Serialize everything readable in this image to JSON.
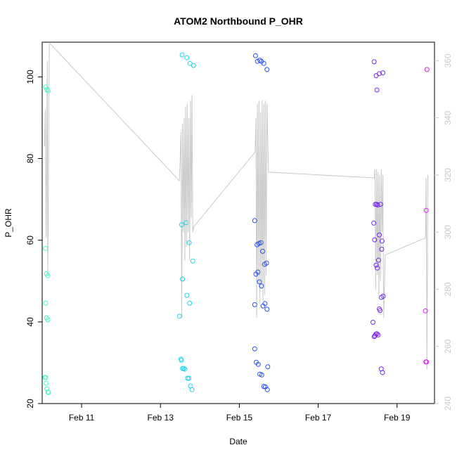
{
  "chart_data": {
    "type": "scatter",
    "title": "ATOM2 Northbound P_OHR",
    "xlabel": "Date",
    "ylabel": "P_OHR",
    "x_unit": "days",
    "x_ticks": [
      {
        "value": 11,
        "label": "Feb 11"
      },
      {
        "value": 13,
        "label": "Feb 13"
      },
      {
        "value": 15,
        "label": "Feb 15"
      },
      {
        "value": 17,
        "label": "Feb 17"
      },
      {
        "value": 19,
        "label": "Feb 19"
      }
    ],
    "xlim": [
      10.0,
      19.95
    ],
    "ylim": [
      20.0,
      108.5
    ],
    "y_ticks": [
      20,
      40,
      60,
      80,
      100
    ],
    "y2_ticks": [
      240,
      260,
      280,
      300,
      320,
      340,
      360
    ],
    "y2lim": [
      240.0,
      366.5
    ],
    "grid": false,
    "points": [
      {
        "x": 10.09,
        "y": 97.5,
        "color": "#3cffb4"
      },
      {
        "x": 10.12,
        "y": 96.9,
        "color": "#3cffb4"
      },
      {
        "x": 10.15,
        "y": 96.6,
        "color": "#3cffb4"
      },
      {
        "x": 10.08,
        "y": 58.0,
        "color": "#3cffb4"
      },
      {
        "x": 10.11,
        "y": 51.8,
        "color": "#3cffb4"
      },
      {
        "x": 10.14,
        "y": 51.3,
        "color": "#3cffb4"
      },
      {
        "x": 10.09,
        "y": 44.6,
        "color": "#3cffb4"
      },
      {
        "x": 10.11,
        "y": 41.0,
        "color": "#3cffb4"
      },
      {
        "x": 10.14,
        "y": 40.5,
        "color": "#3cffb4"
      },
      {
        "x": 10.07,
        "y": 26.4,
        "color": "#3cffb4"
      },
      {
        "x": 10.09,
        "y": 26.4,
        "color": "#3cffb4"
      },
      {
        "x": 10.1,
        "y": 25.0,
        "color": "#3cffb4"
      },
      {
        "x": 10.12,
        "y": 23.6,
        "color": "#3cffb4"
      },
      {
        "x": 10.15,
        "y": 22.8,
        "color": "#3cffb4"
      },
      {
        "x": 10.16,
        "y": 22.7,
        "color": "#3cffb4"
      },
      {
        "x": 13.55,
        "y": 105.4,
        "color": "#1ed2f0"
      },
      {
        "x": 13.67,
        "y": 104.7,
        "color": "#1ed2f0"
      },
      {
        "x": 13.75,
        "y": 103.3,
        "color": "#1ed2f0"
      },
      {
        "x": 13.84,
        "y": 102.8,
        "color": "#1ed2f0"
      },
      {
        "x": 13.54,
        "y": 63.8,
        "color": "#1ed2f0"
      },
      {
        "x": 13.65,
        "y": 64.3,
        "color": "#1ed2f0"
      },
      {
        "x": 13.73,
        "y": 59.4,
        "color": "#1ed2f0"
      },
      {
        "x": 13.82,
        "y": 54.9,
        "color": "#1ed2f0"
      },
      {
        "x": 13.56,
        "y": 50.5,
        "color": "#1ed2f0"
      },
      {
        "x": 13.67,
        "y": 46.5,
        "color": "#1ed2f0"
      },
      {
        "x": 13.74,
        "y": 44.6,
        "color": "#1ed2f0"
      },
      {
        "x": 13.48,
        "y": 41.4,
        "color": "#1ed2f0"
      },
      {
        "x": 13.52,
        "y": 30.9,
        "color": "#1ed2f0"
      },
      {
        "x": 13.53,
        "y": 30.6,
        "color": "#1ed2f0"
      },
      {
        "x": 13.56,
        "y": 28.6,
        "color": "#1ed2f0"
      },
      {
        "x": 13.59,
        "y": 28.6,
        "color": "#1ed2f0"
      },
      {
        "x": 13.62,
        "y": 28.4,
        "color": "#1ed2f0"
      },
      {
        "x": 13.69,
        "y": 26.2,
        "color": "#1ed2f0"
      },
      {
        "x": 13.72,
        "y": 26.2,
        "color": "#1ed2f0"
      },
      {
        "x": 13.76,
        "y": 24.3,
        "color": "#1ed2f0"
      },
      {
        "x": 13.8,
        "y": 23.4,
        "color": "#1ed2f0"
      },
      {
        "x": 15.41,
        "y": 105.2,
        "color": "#2850f0"
      },
      {
        "x": 15.46,
        "y": 103.8,
        "color": "#2850f0"
      },
      {
        "x": 15.52,
        "y": 104.1,
        "color": "#2850f0"
      },
      {
        "x": 15.56,
        "y": 103.8,
        "color": "#2850f0"
      },
      {
        "x": 15.62,
        "y": 103.3,
        "color": "#2850f0"
      },
      {
        "x": 15.7,
        "y": 101.8,
        "color": "#2850f0"
      },
      {
        "x": 15.39,
        "y": 64.8,
        "color": "#2850f0"
      },
      {
        "x": 15.45,
        "y": 58.9,
        "color": "#2850f0"
      },
      {
        "x": 15.5,
        "y": 59.2,
        "color": "#2850f0"
      },
      {
        "x": 15.55,
        "y": 59.4,
        "color": "#2850f0"
      },
      {
        "x": 15.59,
        "y": 57.3,
        "color": "#2850f0"
      },
      {
        "x": 15.64,
        "y": 54.1,
        "color": "#2850f0"
      },
      {
        "x": 15.69,
        "y": 54.4,
        "color": "#2850f0"
      },
      {
        "x": 15.42,
        "y": 51.7,
        "color": "#2850f0"
      },
      {
        "x": 15.47,
        "y": 52.2,
        "color": "#2850f0"
      },
      {
        "x": 15.51,
        "y": 49.8,
        "color": "#2850f0"
      },
      {
        "x": 15.56,
        "y": 48.8,
        "color": "#2850f0"
      },
      {
        "x": 15.39,
        "y": 44.2,
        "color": "#2850f0"
      },
      {
        "x": 15.6,
        "y": 43.9,
        "color": "#2850f0"
      },
      {
        "x": 15.65,
        "y": 44.5,
        "color": "#2850f0"
      },
      {
        "x": 15.7,
        "y": 43.1,
        "color": "#2850f0"
      },
      {
        "x": 15.39,
        "y": 33.4,
        "color": "#2850f0"
      },
      {
        "x": 15.43,
        "y": 30.1,
        "color": "#2850f0"
      },
      {
        "x": 15.48,
        "y": 29.6,
        "color": "#2850f0"
      },
      {
        "x": 15.52,
        "y": 27.2,
        "color": "#2850f0"
      },
      {
        "x": 15.57,
        "y": 27.0,
        "color": "#2850f0"
      },
      {
        "x": 15.62,
        "y": 24.2,
        "color": "#2850f0"
      },
      {
        "x": 15.66,
        "y": 24.1,
        "color": "#2850f0"
      },
      {
        "x": 15.71,
        "y": 23.4,
        "color": "#2850f0"
      },
      {
        "x": 15.72,
        "y": 29.0,
        "color": "#2850f0"
      },
      {
        "x": 18.42,
        "y": 103.7,
        "color": "#7828f0"
      },
      {
        "x": 18.47,
        "y": 100.3,
        "color": "#7828f0"
      },
      {
        "x": 18.55,
        "y": 100.8,
        "color": "#7828f0"
      },
      {
        "x": 18.64,
        "y": 101.0,
        "color": "#7828f0"
      },
      {
        "x": 18.49,
        "y": 96.8,
        "color": "#7828f0"
      },
      {
        "x": 18.41,
        "y": 64.2,
        "color": "#7828f0"
      },
      {
        "x": 18.45,
        "y": 68.8,
        "color": "#7828f0"
      },
      {
        "x": 18.48,
        "y": 68.8,
        "color": "#7828f0"
      },
      {
        "x": 18.51,
        "y": 68.6,
        "color": "#7828f0"
      },
      {
        "x": 18.58,
        "y": 68.8,
        "color": "#7828f0"
      },
      {
        "x": 18.43,
        "y": 60.1,
        "color": "#7828f0"
      },
      {
        "x": 18.55,
        "y": 61.3,
        "color": "#7828f0"
      },
      {
        "x": 18.62,
        "y": 59.8,
        "color": "#7828f0"
      },
      {
        "x": 18.61,
        "y": 57.8,
        "color": "#7828f0"
      },
      {
        "x": 18.53,
        "y": 55.1,
        "color": "#7828f0"
      },
      {
        "x": 18.47,
        "y": 53.9,
        "color": "#7828f0"
      },
      {
        "x": 18.5,
        "y": 53.2,
        "color": "#7828f0"
      },
      {
        "x": 18.6,
        "y": 46.0,
        "color": "#7828f0"
      },
      {
        "x": 18.65,
        "y": 46.3,
        "color": "#7828f0"
      },
      {
        "x": 18.39,
        "y": 39.9,
        "color": "#7828f0"
      },
      {
        "x": 18.55,
        "y": 43.2,
        "color": "#7828f0"
      },
      {
        "x": 18.57,
        "y": 42.8,
        "color": "#7828f0"
      },
      {
        "x": 18.42,
        "y": 36.4,
        "color": "#7828f0"
      },
      {
        "x": 18.44,
        "y": 36.6,
        "color": "#7828f0"
      },
      {
        "x": 18.46,
        "y": 37.0,
        "color": "#7828f0"
      },
      {
        "x": 18.49,
        "y": 37.1,
        "color": "#7828f0"
      },
      {
        "x": 18.52,
        "y": 36.8,
        "color": "#7828f0"
      },
      {
        "x": 18.6,
        "y": 28.5,
        "color": "#7828f0"
      },
      {
        "x": 18.63,
        "y": 27.6,
        "color": "#7828f0"
      },
      {
        "x": 19.76,
        "y": 101.8,
        "color": "#dc1ef0"
      },
      {
        "x": 19.74,
        "y": 67.3,
        "color": "#dc1ef0"
      },
      {
        "x": 19.72,
        "y": 42.7,
        "color": "#dc1ef0"
      },
      {
        "x": 19.73,
        "y": 30.2,
        "color": "#dc1ef0"
      },
      {
        "x": 19.75,
        "y": 30.2,
        "color": "#dc1ef0"
      }
    ],
    "line_series": {
      "axis": "right",
      "color": "#c8c8c8",
      "x": [
        10.06,
        10.08,
        10.1,
        10.12,
        10.13,
        10.14,
        10.16,
        10.18,
        10.2,
        13.48,
        13.52,
        13.54,
        13.56,
        13.58,
        13.6,
        13.62,
        13.64,
        13.66,
        13.68,
        13.7,
        13.72,
        13.74,
        13.76,
        13.78,
        13.8,
        13.82,
        13.85,
        15.4,
        15.42,
        15.44,
        15.46,
        15.48,
        15.5,
        15.52,
        15.54,
        15.56,
        15.58,
        15.6,
        15.62,
        15.64,
        15.66,
        15.68,
        15.7,
        15.74,
        18.42,
        18.44,
        18.46,
        18.48,
        18.5,
        18.52,
        18.54,
        18.56,
        18.58,
        18.6,
        18.62,
        18.64,
        18.66,
        18.7,
        19.72,
        19.74,
        19.76,
        19.78
      ],
      "y": [
        330,
        343,
        298,
        339,
        360,
        285,
        320,
        366,
        366,
        318,
        335,
        270,
        338,
        300,
        340,
        290,
        344,
        295,
        345,
        300,
        340,
        290,
        346,
        305,
        348,
        300,
        302,
        328,
        340,
        270,
        345,
        282,
        346,
        275,
        342,
        280,
        346,
        276,
        345,
        278,
        346,
        285,
        345,
        321,
        319,
        322,
        280,
        322,
        285,
        321,
        278,
        320,
        283,
        322,
        300,
        320,
        270,
        292,
        298,
        319,
        252,
        320
      ]
    }
  }
}
